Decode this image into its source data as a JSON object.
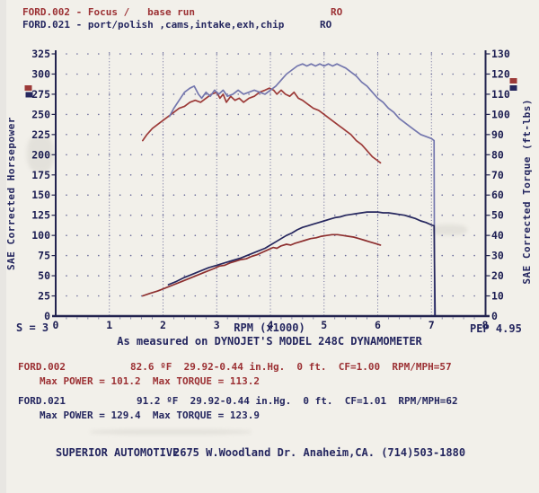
{
  "header": {
    "run1": {
      "label": "FORD.002 - Focus /   base run",
      "tag": "RO"
    },
    "run2": {
      "label": "FORD.021 - port/polish ,cams,intake,exh,chip",
      "tag": "RO"
    }
  },
  "chart_data": {
    "type": "line",
    "title": "",
    "x_axis": {
      "label": "RPM (x1000)",
      "min": 0,
      "max": 8,
      "major_step": 1,
      "minor_step": 0.2
    },
    "y_left": {
      "label": "SAE Corrected Horsepower",
      "min": 0,
      "max": 325,
      "step": 25
    },
    "y_right": {
      "label": "SAE Corrected Torque (ft-lbs)",
      "min": 0,
      "max": 130,
      "step": 10
    },
    "grid": {
      "dot_rows": true,
      "dotted_vlines_at_major_x": true
    },
    "colors": {
      "axis": "#22234f",
      "tick_label": "#1c1d52",
      "grid_dot": "#696a99",
      "vline": "#5c5d91",
      "run1_torque": "#9c3a38",
      "run1_power": "#8d2f2f",
      "run2_torque": "#7477ae",
      "run2_power": "#26275e"
    },
    "legend_markers": {
      "left": [
        {
          "name": "run1-marker",
          "color": "#9c3a38"
        },
        {
          "name": "run2-marker",
          "color": "#26275e"
        }
      ],
      "right": [
        {
          "name": "run1-marker",
          "color": "#9c3a38"
        },
        {
          "name": "run2-marker",
          "color": "#26275e"
        }
      ]
    },
    "series": [
      {
        "name": "FORD.002 torque",
        "axis": "right",
        "color_key": "run1_torque",
        "points": [
          [
            1.62,
            87
          ],
          [
            1.7,
            90
          ],
          [
            1.8,
            93
          ],
          [
            1.9,
            95
          ],
          [
            2.0,
            97
          ],
          [
            2.1,
            99
          ],
          [
            2.2,
            101
          ],
          [
            2.3,
            103
          ],
          [
            2.4,
            104
          ],
          [
            2.5,
            106
          ],
          [
            2.6,
            107
          ],
          [
            2.7,
            106
          ],
          [
            2.8,
            108
          ],
          [
            2.9,
            110
          ],
          [
            3.0,
            111
          ],
          [
            3.06,
            108
          ],
          [
            3.12,
            110
          ],
          [
            3.18,
            106
          ],
          [
            3.26,
            109
          ],
          [
            3.34,
            107
          ],
          [
            3.42,
            108
          ],
          [
            3.5,
            106
          ],
          [
            3.6,
            108
          ],
          [
            3.7,
            109
          ],
          [
            3.8,
            111
          ],
          [
            3.9,
            112
          ],
          [
            3.98,
            113
          ],
          [
            4.06,
            112
          ],
          [
            4.12,
            110
          ],
          [
            4.2,
            112
          ],
          [
            4.28,
            110
          ],
          [
            4.36,
            109
          ],
          [
            4.44,
            111
          ],
          [
            4.52,
            108
          ],
          [
            4.6,
            107
          ],
          [
            4.7,
            105
          ],
          [
            4.8,
            103
          ],
          [
            4.9,
            102
          ],
          [
            5.0,
            100
          ],
          [
            5.1,
            98
          ],
          [
            5.2,
            96
          ],
          [
            5.3,
            94
          ],
          [
            5.4,
            92
          ],
          [
            5.5,
            90
          ],
          [
            5.6,
            87
          ],
          [
            5.7,
            85
          ],
          [
            5.8,
            82
          ],
          [
            5.9,
            79
          ],
          [
            6.0,
            77
          ],
          [
            6.05,
            76
          ]
        ]
      },
      {
        "name": "FORD.021 torque",
        "axis": "right",
        "color_key": "run2_torque",
        "points": [
          [
            2.12,
            99
          ],
          [
            2.2,
            103
          ],
          [
            2.3,
            107
          ],
          [
            2.4,
            111
          ],
          [
            2.5,
            113
          ],
          [
            2.58,
            114
          ],
          [
            2.66,
            110
          ],
          [
            2.72,
            108
          ],
          [
            2.8,
            111
          ],
          [
            2.88,
            109
          ],
          [
            2.96,
            112
          ],
          [
            3.04,
            110
          ],
          [
            3.12,
            112
          ],
          [
            3.2,
            109
          ],
          [
            3.3,
            110
          ],
          [
            3.4,
            112
          ],
          [
            3.5,
            110
          ],
          [
            3.6,
            111
          ],
          [
            3.7,
            112
          ],
          [
            3.8,
            111
          ],
          [
            3.9,
            110
          ],
          [
            4.0,
            112
          ],
          [
            4.1,
            114
          ],
          [
            4.2,
            117
          ],
          [
            4.3,
            120
          ],
          [
            4.4,
            122
          ],
          [
            4.5,
            124
          ],
          [
            4.6,
            125
          ],
          [
            4.68,
            124
          ],
          [
            4.76,
            125
          ],
          [
            4.84,
            124
          ],
          [
            4.92,
            125
          ],
          [
            5.0,
            124
          ],
          [
            5.08,
            125
          ],
          [
            5.16,
            124
          ],
          [
            5.24,
            125
          ],
          [
            5.32,
            124
          ],
          [
            5.4,
            123
          ],
          [
            5.5,
            121
          ],
          [
            5.6,
            119
          ],
          [
            5.7,
            116
          ],
          [
            5.8,
            114
          ],
          [
            5.9,
            111
          ],
          [
            6.0,
            108
          ],
          [
            6.1,
            106
          ],
          [
            6.2,
            103
          ],
          [
            6.3,
            101
          ],
          [
            6.4,
            98
          ],
          [
            6.5,
            96
          ],
          [
            6.6,
            94
          ],
          [
            6.7,
            92
          ],
          [
            6.8,
            90
          ],
          [
            6.9,
            89
          ],
          [
            7.0,
            88
          ],
          [
            7.05,
            87
          ],
          [
            7.06,
            0
          ]
        ]
      },
      {
        "name": "FORD.002 power",
        "axis": "left",
        "color_key": "run1_power",
        "points": [
          [
            1.62,
            25
          ],
          [
            1.75,
            28
          ],
          [
            1.9,
            31
          ],
          [
            2.05,
            35
          ],
          [
            2.2,
            39
          ],
          [
            2.35,
            43
          ],
          [
            2.5,
            47
          ],
          [
            2.65,
            51
          ],
          [
            2.8,
            55
          ],
          [
            2.95,
            59
          ],
          [
            3.05,
            62
          ],
          [
            3.15,
            63
          ],
          [
            3.25,
            66
          ],
          [
            3.35,
            68
          ],
          [
            3.45,
            70
          ],
          [
            3.55,
            71
          ],
          [
            3.65,
            74
          ],
          [
            3.75,
            76
          ],
          [
            3.85,
            79
          ],
          [
            3.95,
            82
          ],
          [
            4.05,
            85
          ],
          [
            4.12,
            84
          ],
          [
            4.2,
            87
          ],
          [
            4.3,
            89
          ],
          [
            4.38,
            88
          ],
          [
            4.45,
            90
          ],
          [
            4.55,
            92
          ],
          [
            4.65,
            94
          ],
          [
            4.75,
            96
          ],
          [
            4.85,
            97
          ],
          [
            4.95,
            99
          ],
          [
            5.05,
            100
          ],
          [
            5.15,
            101
          ],
          [
            5.25,
            101
          ],
          [
            5.35,
            100
          ],
          [
            5.45,
            99
          ],
          [
            5.55,
            98
          ],
          [
            5.65,
            96
          ],
          [
            5.75,
            94
          ],
          [
            5.85,
            92
          ],
          [
            5.95,
            90
          ],
          [
            6.05,
            88
          ]
        ]
      },
      {
        "name": "FORD.021 power",
        "axis": "left",
        "color_key": "run2_power",
        "points": [
          [
            2.1,
            39
          ],
          [
            2.25,
            43
          ],
          [
            2.4,
            48
          ],
          [
            2.55,
            52
          ],
          [
            2.7,
            56
          ],
          [
            2.85,
            60
          ],
          [
            3.0,
            63
          ],
          [
            3.15,
            66
          ],
          [
            3.3,
            69
          ],
          [
            3.45,
            72
          ],
          [
            3.6,
            76
          ],
          [
            3.75,
            80
          ],
          [
            3.9,
            84
          ],
          [
            4.0,
            88
          ],
          [
            4.1,
            92
          ],
          [
            4.2,
            96
          ],
          [
            4.3,
            100
          ],
          [
            4.4,
            103
          ],
          [
            4.5,
            107
          ],
          [
            4.6,
            110
          ],
          [
            4.7,
            112
          ],
          [
            4.8,
            114
          ],
          [
            4.9,
            116
          ],
          [
            5.0,
            118
          ],
          [
            5.1,
            120
          ],
          [
            5.2,
            122
          ],
          [
            5.3,
            123
          ],
          [
            5.4,
            125
          ],
          [
            5.5,
            126
          ],
          [
            5.6,
            127
          ],
          [
            5.7,
            128
          ],
          [
            5.8,
            129
          ],
          [
            5.9,
            129
          ],
          [
            6.0,
            129
          ],
          [
            6.1,
            128
          ],
          [
            6.2,
            128
          ],
          [
            6.3,
            127
          ],
          [
            6.4,
            126
          ],
          [
            6.5,
            125
          ],
          [
            6.6,
            123
          ],
          [
            6.7,
            121
          ],
          [
            6.8,
            118
          ],
          [
            6.9,
            116
          ],
          [
            7.0,
            113
          ],
          [
            7.05,
            112
          ],
          [
            7.07,
            0
          ]
        ]
      }
    ]
  },
  "footnotes": {
    "left_note": "S = 3",
    "x_caption": "RPM (x1000)",
    "right_note": "PEP 4.95",
    "subtitle": "As measured on DYNOJET'S MODEL 248C DYNAMOMETER"
  },
  "runs": [
    {
      "file": "FORD.002",
      "conditions": "82.6 ºF  29.92-0.44 in.Hg.  0 ft.  CF=1.00  RPM/MPH=57",
      "max_line": "Max POWER = 101.2  Max TORQUE = 113.2"
    },
    {
      "file": "FORD.021",
      "conditions": "91.2 ºF  29.92-0.44 in.Hg.  0 ft.  CF=1.01  RPM/MPH=62",
      "max_line": "Max POWER = 129.4  Max TORQUE = 123.9"
    }
  ],
  "footer": {
    "name": "SUPERIOR AUTOMOTIVE",
    "address": "2675 W.Woodland Dr. Anaheim,CA. (714)503-1880"
  }
}
